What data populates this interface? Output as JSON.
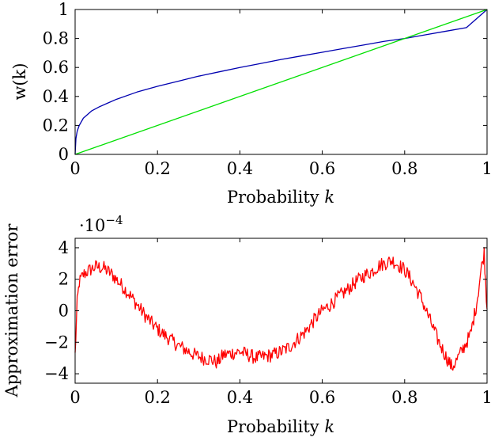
{
  "chart_data": [
    {
      "type": "line",
      "xlabel_text": "Probability ",
      "xlabel_var": "k",
      "ylabel": "w(k)",
      "xlim": [
        0,
        1
      ],
      "ylim": [
        0,
        1
      ],
      "xticks": [
        "0",
        "0.2",
        "0.4",
        "0.6",
        "0.8",
        "1"
      ],
      "yticks": [
        "0",
        "0.2",
        "0.4",
        "0.6",
        "0.8",
        "1"
      ],
      "grid": false,
      "series": [
        {
          "color": "#0000b0",
          "x": [
            0,
            0.002,
            0.005,
            0.01,
            0.02,
            0.04,
            0.06,
            0.08,
            0.1,
            0.15,
            0.2,
            0.25,
            0.3,
            0.35,
            0.4,
            0.45,
            0.5,
            0.55,
            0.6,
            0.65,
            0.7,
            0.75,
            0.8,
            0.85,
            0.9,
            0.95,
            1.0
          ],
          "y": [
            0,
            0.11,
            0.16,
            0.2,
            0.25,
            0.3,
            0.33,
            0.355,
            0.38,
            0.43,
            0.47,
            0.505,
            0.54,
            0.57,
            0.6,
            0.627,
            0.655,
            0.68,
            0.705,
            0.73,
            0.755,
            0.78,
            0.8,
            0.825,
            0.85,
            0.875,
            1.0
          ]
        },
        {
          "color": "#00e000",
          "x": [
            0,
            1
          ],
          "y": [
            0,
            1
          ]
        }
      ]
    },
    {
      "type": "line",
      "xlabel_text": "Probability ",
      "xlabel_var": "k",
      "ylabel": "Approximation error",
      "multiplier_base": "·10",
      "multiplier_exp": "−4",
      "xlim": [
        0,
        1
      ],
      "ylim": [
        -4.6,
        4.6
      ],
      "xticks": [
        "0",
        "0.2",
        "0.4",
        "0.6",
        "0.8",
        "1"
      ],
      "yticks": [
        "4",
        "2",
        "0",
        "−2",
        "−4"
      ],
      "grid": false,
      "series": [
        {
          "color": "#ff0000",
          "x": [
            0,
            0.005,
            0.01,
            0.02,
            0.03,
            0.05,
            0.07,
            0.09,
            0.11,
            0.13,
            0.15,
            0.17,
            0.19,
            0.21,
            0.23,
            0.25,
            0.27,
            0.29,
            0.31,
            0.33,
            0.345,
            0.36,
            0.38,
            0.4,
            0.42,
            0.44,
            0.46,
            0.48,
            0.5,
            0.52,
            0.54,
            0.56,
            0.58,
            0.6,
            0.62,
            0.64,
            0.66,
            0.68,
            0.7,
            0.72,
            0.74,
            0.76,
            0.77,
            0.78,
            0.8,
            0.82,
            0.84,
            0.86,
            0.88,
            0.9,
            0.915,
            0.925,
            0.94,
            0.96,
            0.975,
            0.985,
            0.993,
            1.0
          ],
          "y": [
            -2.8,
            0.5,
            1.8,
            2.3,
            2.5,
            2.8,
            2.7,
            2.3,
            1.7,
            1.1,
            0.4,
            -0.3,
            -0.9,
            -1.4,
            -1.8,
            -2.2,
            -2.5,
            -2.8,
            -3.0,
            -3.1,
            -3.3,
            -2.8,
            -2.7,
            -2.6,
            -2.8,
            -3.0,
            -2.9,
            -2.8,
            -2.6,
            -2.3,
            -1.8,
            -1.3,
            -0.6,
            0.0,
            0.4,
            0.9,
            1.3,
            1.8,
            2.2,
            2.5,
            2.9,
            3.1,
            3.2,
            3.0,
            2.6,
            1.8,
            0.8,
            -0.5,
            -1.8,
            -2.9,
            -3.6,
            -3.2,
            -2.5,
            -1.5,
            0.5,
            2.5,
            3.7,
            0.1
          ]
        }
      ]
    }
  ]
}
